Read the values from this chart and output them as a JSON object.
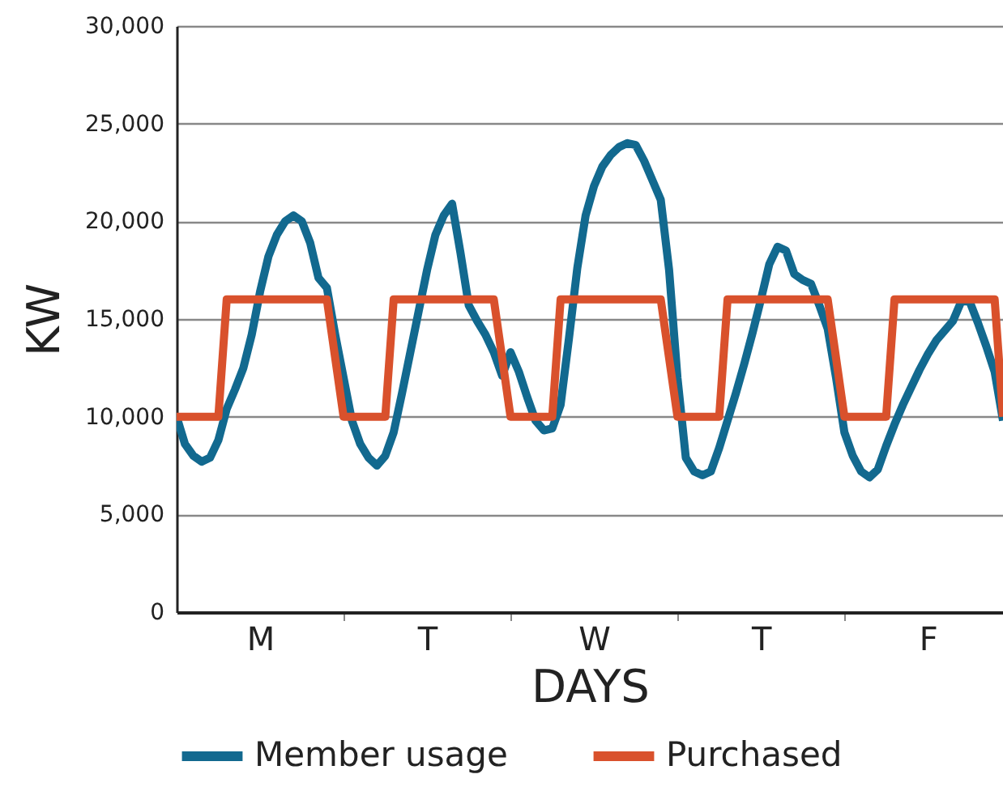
{
  "chart_data": {
    "type": "line",
    "xlabel": "DAYS",
    "ylabel": "KW",
    "categories": [
      null,
      null,
      null,
      null,
      null,
      null,
      null,
      null,
      null,
      null,
      "M",
      null,
      null,
      null,
      null,
      null,
      null,
      null,
      null,
      null,
      null,
      null,
      null,
      null,
      null,
      null,
      null,
      null,
      null,
      null,
      "T",
      null,
      null,
      null,
      null,
      null,
      null,
      null,
      null,
      null,
      null,
      null,
      null,
      null,
      null,
      null,
      null,
      null,
      null,
      null,
      "W",
      null,
      null,
      null,
      null,
      null,
      null,
      null,
      null,
      null,
      null,
      null,
      null,
      null,
      null,
      null,
      null,
      null,
      null,
      null,
      "T",
      null,
      null,
      null,
      null,
      null,
      null,
      null,
      null,
      null,
      null,
      null,
      null,
      null,
      null,
      null,
      null,
      null,
      null,
      null,
      "F",
      null,
      null,
      null,
      null,
      null,
      null,
      null,
      null,
      null
    ],
    "ylim": [
      0,
      30000
    ],
    "yticks": [
      {
        "value": 0,
        "label": "0"
      },
      {
        "value": 5000,
        "label": "5,000"
      },
      {
        "value": 10000,
        "label": "10,000"
      },
      {
        "value": 15000,
        "label": "15,000"
      },
      {
        "value": 20000,
        "label": "20,000"
      },
      {
        "value": 25000,
        "label": "25,000"
      },
      {
        "value": 30000,
        "label": "30,000"
      }
    ],
    "grid": "y",
    "legend": "bottom",
    "marker": "none",
    "line_style": "solid",
    "series": [
      {
        "name": "Member usage",
        "color": "#12698f",
        "values": [
          10000,
          8600,
          8000,
          7700,
          7900,
          8800,
          10400,
          11400,
          12500,
          14200,
          16400,
          18200,
          19300,
          20000,
          20300,
          20000,
          18900,
          17100,
          16600,
          14200,
          12000,
          9800,
          8600,
          7900,
          7500,
          8000,
          9200,
          11200,
          13300,
          15400,
          17500,
          19300,
          20300,
          20900,
          18400,
          15700,
          14900,
          14200,
          13300,
          12100,
          13300,
          12300,
          11000,
          9800,
          9300,
          9400,
          10600,
          14000,
          17600,
          20300,
          21800,
          22800,
          23400,
          23800,
          24000,
          23900,
          23100,
          22100,
          21100,
          17500,
          12000,
          7900,
          7200,
          7000,
          7200,
          8400,
          9800,
          11200,
          12700,
          14300,
          16000,
          17800,
          18700,
          18500,
          17300,
          17000,
          16800,
          15700,
          14500,
          12000,
          9200,
          8000,
          7200,
          6900,
          7300,
          8500,
          9600,
          10600,
          11500,
          12400,
          13200,
          13900,
          14400,
          14900,
          15900,
          15900,
          14800,
          13600,
          12300,
          9800
        ]
      },
      {
        "name": "Purchased",
        "color": "#d9512c",
        "values": [
          10000,
          10000,
          10000,
          10000,
          10000,
          10000,
          16000,
          16000,
          16000,
          16000,
          16000,
          16000,
          16000,
          16000,
          16000,
          16000,
          16000,
          16000,
          16000,
          13000,
          10000,
          10000,
          10000,
          10000,
          10000,
          10000,
          16000,
          16000,
          16000,
          16000,
          16000,
          16000,
          16000,
          16000,
          16000,
          16000,
          16000,
          16000,
          16000,
          13000,
          10000,
          10000,
          10000,
          10000,
          10000,
          10000,
          16000,
          16000,
          16000,
          16000,
          16000,
          16000,
          16000,
          16000,
          16000,
          16000,
          16000,
          16000,
          16000,
          13000,
          10000,
          10000,
          10000,
          10000,
          10000,
          10000,
          16000,
          16000,
          16000,
          16000,
          16000,
          16000,
          16000,
          16000,
          16000,
          16000,
          16000,
          16000,
          16000,
          13000,
          10000,
          10000,
          10000,
          10000,
          10000,
          10000,
          16000,
          16000,
          16000,
          16000,
          16000,
          16000,
          16000,
          16000,
          16000,
          16000,
          16000,
          16000,
          16000,
          10000
        ]
      }
    ]
  }
}
